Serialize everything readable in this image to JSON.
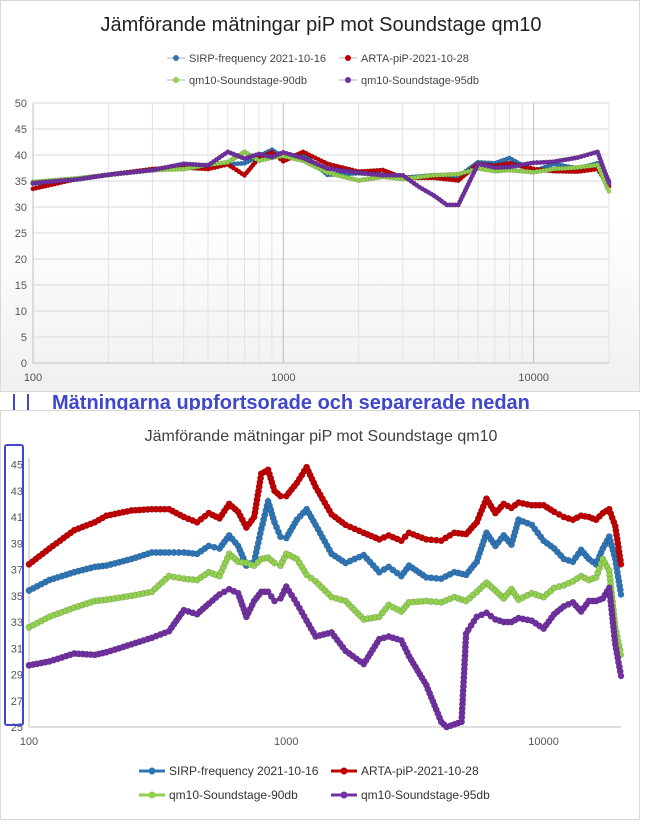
{
  "caption": "Mätningarna uppfortsorade och separerade nedan",
  "colors": {
    "sirp": "#2e75b6",
    "arta": "#c00000",
    "soundstage90": "#92d050",
    "soundstage95": "#7030a0"
  },
  "chart_data": [
    {
      "type": "line",
      "title": "Jämförande mätningar piP mot Soundstage qm10",
      "x_scale": "log",
      "xlim": [
        100,
        20000
      ],
      "ylim": [
        0,
        50
      ],
      "yticks": [
        0,
        5,
        10,
        15,
        20,
        25,
        30,
        35,
        40,
        45,
        50
      ],
      "xticks": [
        100,
        1000,
        10000
      ],
      "legend_position": "top",
      "grid": true,
      "series": [
        {
          "name": "SIRP-frequency 2021-10-16",
          "color": "#2e75b6",
          "x": [
            100,
            150,
            200,
            300,
            400,
            500,
            600,
            700,
            800,
            900,
            1000,
            1200,
            1500,
            2000,
            2500,
            3000,
            4000,
            5000,
            6000,
            7000,
            8000,
            10000,
            12000,
            15000,
            18000,
            20000
          ],
          "y": [
            34.5,
            35.3,
            36.2,
            37.1,
            37.6,
            37.6,
            38.2,
            38.4,
            39.8,
            41,
            39.6,
            40.2,
            36.2,
            36.5,
            36.2,
            35.6,
            36.1,
            35.8,
            38.6,
            38.4,
            39.4,
            36.8,
            38.3,
            37.4,
            38.4,
            35
          ]
        },
        {
          "name": "ARTA-piP-2021-10-28",
          "color": "#c00000",
          "x": [
            100,
            150,
            200,
            300,
            400,
            500,
            600,
            700,
            800,
            900,
            1000,
            1200,
            1500,
            2000,
            2500,
            3000,
            4000,
            5000,
            6000,
            7000,
            8000,
            10000,
            12000,
            15000,
            18000,
            20000
          ],
          "y": [
            33.5,
            35.4,
            36.2,
            37.3,
            37.6,
            37.3,
            38.2,
            36.1,
            39.5,
            40.5,
            38.8,
            40.6,
            38.3,
            36.8,
            37.1,
            35.6,
            35.6,
            35.1,
            38.3,
            37.9,
            38.4,
            37.3,
            36.9,
            36.8,
            37.3,
            34
          ]
        },
        {
          "name": "qm10-Soundstage-90db",
          "color": "#92d050",
          "x": [
            100,
            150,
            200,
            300,
            400,
            500,
            600,
            700,
            800,
            900,
            1000,
            1200,
            1500,
            2000,
            2500,
            3000,
            4000,
            5000,
            6000,
            7000,
            8000,
            10000,
            12000,
            15000,
            18000,
            20000
          ],
          "y": [
            34.8,
            35.5,
            36.2,
            37.1,
            37.3,
            38.1,
            38.6,
            40.6,
            38.9,
            39.5,
            39.8,
            38.9,
            36.6,
            35.1,
            35.8,
            35.4,
            36.1,
            36.3,
            37.4,
            36.9,
            37.1,
            36.7,
            37.3,
            37.6,
            38.1,
            33
          ]
        },
        {
          "name": "qm10-Soundstage-95db",
          "color": "#7030a0",
          "x": [
            100,
            150,
            200,
            300,
            400,
            500,
            600,
            700,
            800,
            900,
            1000,
            1200,
            1500,
            2000,
            2500,
            3000,
            3500,
            4000,
            4500,
            5000,
            6000,
            7000,
            8000,
            10000,
            12000,
            15000,
            18000,
            20000
          ],
          "y": [
            34.6,
            35.3,
            36.2,
            37.1,
            38.3,
            38,
            40.6,
            39.3,
            40.2,
            39.6,
            40.5,
            39.4,
            37.4,
            36.6,
            36.1,
            36.1,
            33.8,
            32.2,
            30.4,
            30.4,
            38.3,
            37.6,
            37.7,
            38.5,
            38.7,
            39.5,
            40.6,
            34.6
          ]
        }
      ]
    },
    {
      "type": "line",
      "title": "Jämförande mätningar piP mot Soundstage qm10",
      "x_scale": "log",
      "xlim": [
        100,
        20000
      ],
      "ylim": [
        25,
        45.5
      ],
      "yticks": [
        25,
        27,
        29,
        31,
        33,
        35,
        37,
        39,
        41,
        43,
        45
      ],
      "xticks": [
        100,
        1000,
        10000
      ],
      "legend_position": "bottom",
      "grid": false,
      "series": [
        {
          "name": "SIRP-frequency 2021-10-16",
          "color": "#2e75b6",
          "x": [
            100,
            120,
            150,
            180,
            200,
            250,
            300,
            350,
            400,
            450,
            500,
            550,
            600,
            650,
            700,
            750,
            800,
            850,
            900,
            950,
            1000,
            1100,
            1200,
            1300,
            1500,
            1700,
            2000,
            2300,
            2500,
            2800,
            3000,
            3500,
            4000,
            4500,
            5000,
            5500,
            6000,
            6500,
            7000,
            7500,
            8000,
            9000,
            10000,
            11000,
            12000,
            13000,
            14000,
            15000,
            16000,
            17000,
            18000,
            19000,
            20000
          ],
          "y": [
            35.4,
            36.2,
            36.8,
            37.2,
            37.3,
            37.8,
            38.3,
            38.3,
            38.3,
            38.2,
            38.8,
            38.6,
            39.6,
            38.8,
            37.3,
            37.6,
            40.1,
            42.2,
            40.6,
            39.5,
            39.4,
            40.8,
            41.6,
            40.4,
            38.2,
            37.5,
            38.1,
            36.8,
            37.2,
            36.5,
            37.3,
            36.4,
            36.3,
            36.8,
            36.6,
            37.6,
            39.8,
            38.8,
            39.6,
            38.9,
            40.8,
            40.4,
            39.2,
            38.6,
            37.8,
            37.6,
            38.5,
            37.8,
            37.4,
            38.6,
            39.5,
            37.8,
            35.1
          ]
        },
        {
          "name": "ARTA-piP-2021-10-28",
          "color": "#c00000",
          "x": [
            100,
            120,
            150,
            180,
            200,
            250,
            300,
            350,
            400,
            450,
            500,
            550,
            600,
            650,
            700,
            750,
            800,
            850,
            900,
            950,
            1000,
            1100,
            1200,
            1300,
            1500,
            1700,
            2000,
            2300,
            2500,
            2800,
            3000,
            3500,
            4000,
            4500,
            5000,
            5500,
            6000,
            6500,
            7000,
            7500,
            8000,
            9000,
            10000,
            11000,
            12000,
            13000,
            14000,
            15000,
            16000,
            17000,
            18000,
            19000,
            20000
          ],
          "y": [
            37.4,
            38.6,
            40,
            40.6,
            41.1,
            41.5,
            41.6,
            41.6,
            41,
            40.6,
            41.3,
            40.9,
            42,
            41.4,
            40.2,
            41,
            44.3,
            44.6,
            43,
            42.6,
            42.6,
            43.6,
            44.8,
            43.3,
            41.2,
            40.4,
            39.8,
            39.3,
            39.6,
            39.2,
            39.8,
            39.3,
            39.2,
            39.8,
            39.7,
            40.6,
            42.4,
            41.3,
            42,
            41.7,
            42.1,
            41.9,
            41.9,
            41.4,
            41,
            40.8,
            41.1,
            41,
            40.8,
            41.3,
            41.6,
            40.3,
            37.4
          ]
        },
        {
          "name": "qm10-Soundstage-90db",
          "color": "#92d050",
          "x": [
            100,
            120,
            150,
            180,
            200,
            250,
            300,
            350,
            400,
            450,
            500,
            550,
            600,
            650,
            700,
            750,
            800,
            850,
            900,
            950,
            1000,
            1100,
            1200,
            1300,
            1500,
            1700,
            2000,
            2300,
            2500,
            2800,
            3000,
            3500,
            4000,
            4500,
            5000,
            5500,
            6000,
            6500,
            7000,
            7500,
            8000,
            9000,
            10000,
            11000,
            12000,
            13000,
            14000,
            15000,
            16000,
            17000,
            18000,
            19000,
            20000
          ],
          "y": [
            32.6,
            33.4,
            34.1,
            34.6,
            34.7,
            35,
            35.3,
            36.5,
            36.3,
            36.2,
            36.8,
            36.5,
            38.2,
            37.6,
            37.5,
            37.3,
            37.8,
            37.9,
            37.5,
            37.3,
            38.2,
            37.8,
            36.6,
            36.1,
            34.9,
            34.6,
            33.2,
            33.4,
            34.3,
            33.8,
            34.5,
            34.6,
            34.5,
            34.9,
            34.6,
            35.3,
            36,
            35.4,
            34.8,
            35.5,
            34.7,
            35.2,
            34.9,
            35.6,
            35.8,
            36.1,
            36.5,
            36.2,
            36.4,
            37.8,
            36.9,
            32.6,
            30.5
          ]
        },
        {
          "name": "qm10-Soundstage-95db",
          "color": "#7030a0",
          "x": [
            100,
            120,
            150,
            180,
            200,
            250,
            300,
            350,
            400,
            450,
            500,
            550,
            600,
            650,
            700,
            750,
            800,
            850,
            900,
            950,
            1000,
            1100,
            1200,
            1300,
            1500,
            1700,
            2000,
            2300,
            2500,
            2800,
            3000,
            3500,
            4000,
            4200,
            4500,
            4800,
            5000,
            5100,
            5500,
            6000,
            6500,
            7000,
            7500,
            8000,
            9000,
            10000,
            11000,
            12000,
            13000,
            14000,
            15000,
            16000,
            17000,
            18000,
            19000,
            20000
          ],
          "y": [
            29.7,
            30,
            30.6,
            30.5,
            30.7,
            31.3,
            31.8,
            32.3,
            33.9,
            33.6,
            34.4,
            35.1,
            35.5,
            35.2,
            33.4,
            34.6,
            35.3,
            35.3,
            34.6,
            34.8,
            35.7,
            34.4,
            33.1,
            31.9,
            32.2,
            30.8,
            29.8,
            31.7,
            31.9,
            31.6,
            30.4,
            28.2,
            25.4,
            25,
            25.2,
            25.4,
            32.1,
            32.4,
            33.4,
            33.7,
            33.2,
            33,
            33,
            33.3,
            33.1,
            32.5,
            33.6,
            34.2,
            34.5,
            33.8,
            34.6,
            34.6,
            34.8,
            35.6,
            31.3,
            28.9
          ]
        }
      ]
    }
  ]
}
